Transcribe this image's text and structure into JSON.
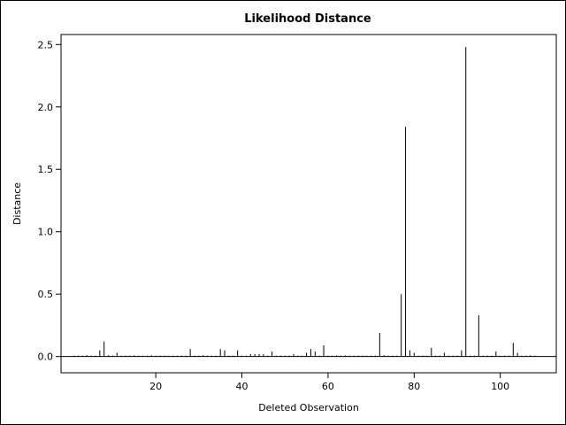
{
  "chart_data": {
    "type": "needle",
    "title": "Likelihood Distance",
    "xlabel": "Deleted Observation",
    "ylabel": "Distance",
    "xlim": [
      -2,
      113
    ],
    "ylim": [
      -0.13,
      2.58
    ],
    "x_ticks": [
      20,
      40,
      60,
      80,
      100
    ],
    "y_ticks": [
      0.0,
      0.5,
      1.0,
      1.5,
      2.0,
      2.5
    ],
    "y_tick_labels": [
      "0.0",
      "0.5",
      "1.0",
      "1.5",
      "2.0",
      "2.5"
    ],
    "baseline": 0,
    "points": [
      {
        "x": 1,
        "y": 0.0
      },
      {
        "x": 2,
        "y": 0.0
      },
      {
        "x": 3,
        "y": 0.0
      },
      {
        "x": 4,
        "y": 0.01
      },
      {
        "x": 5,
        "y": 0.0
      },
      {
        "x": 6,
        "y": 0.0
      },
      {
        "x": 7,
        "y": 0.05
      },
      {
        "x": 8,
        "y": 0.12
      },
      {
        "x": 9,
        "y": 0.01
      },
      {
        "x": 10,
        "y": 0.0
      },
      {
        "x": 11,
        "y": 0.03
      },
      {
        "x": 12,
        "y": 0.0
      },
      {
        "x": 13,
        "y": 0.0
      },
      {
        "x": 14,
        "y": 0.0
      },
      {
        "x": 15,
        "y": 0.01
      },
      {
        "x": 16,
        "y": 0.0
      },
      {
        "x": 17,
        "y": 0.0
      },
      {
        "x": 18,
        "y": 0.0
      },
      {
        "x": 19,
        "y": 0.01
      },
      {
        "x": 20,
        "y": 0.0
      },
      {
        "x": 21,
        "y": 0.0
      },
      {
        "x": 22,
        "y": 0.0
      },
      {
        "x": 23,
        "y": 0.0
      },
      {
        "x": 24,
        "y": 0.0
      },
      {
        "x": 25,
        "y": 0.0
      },
      {
        "x": 26,
        "y": 0.0
      },
      {
        "x": 27,
        "y": 0.0
      },
      {
        "x": 28,
        "y": 0.06
      },
      {
        "x": 29,
        "y": 0.0
      },
      {
        "x": 30,
        "y": 0.0
      },
      {
        "x": 31,
        "y": 0.01
      },
      {
        "x": 32,
        "y": 0.0
      },
      {
        "x": 33,
        "y": 0.0
      },
      {
        "x": 34,
        "y": 0.0
      },
      {
        "x": 35,
        "y": 0.06
      },
      {
        "x": 36,
        "y": 0.05
      },
      {
        "x": 37,
        "y": 0.0
      },
      {
        "x": 38,
        "y": 0.0
      },
      {
        "x": 39,
        "y": 0.05
      },
      {
        "x": 40,
        "y": 0.0
      },
      {
        "x": 41,
        "y": 0.0
      },
      {
        "x": 42,
        "y": 0.02
      },
      {
        "x": 43,
        "y": 0.02
      },
      {
        "x": 44,
        "y": 0.02
      },
      {
        "x": 45,
        "y": 0.02
      },
      {
        "x": 46,
        "y": 0.0
      },
      {
        "x": 47,
        "y": 0.04
      },
      {
        "x": 48,
        "y": 0.0
      },
      {
        "x": 49,
        "y": 0.0
      },
      {
        "x": 50,
        "y": 0.0
      },
      {
        "x": 51,
        "y": 0.0
      },
      {
        "x": 52,
        "y": 0.02
      },
      {
        "x": 53,
        "y": 0.0
      },
      {
        "x": 54,
        "y": 0.0
      },
      {
        "x": 55,
        "y": 0.03
      },
      {
        "x": 56,
        "y": 0.06
      },
      {
        "x": 57,
        "y": 0.04
      },
      {
        "x": 58,
        "y": 0.0
      },
      {
        "x": 59,
        "y": 0.09
      },
      {
        "x": 60,
        "y": 0.0
      },
      {
        "x": 61,
        "y": 0.0
      },
      {
        "x": 62,
        "y": 0.01
      },
      {
        "x": 63,
        "y": 0.0
      },
      {
        "x": 64,
        "y": 0.01
      },
      {
        "x": 65,
        "y": 0.0
      },
      {
        "x": 66,
        "y": 0.0
      },
      {
        "x": 67,
        "y": 0.0
      },
      {
        "x": 68,
        "y": 0.0
      },
      {
        "x": 69,
        "y": 0.0
      },
      {
        "x": 70,
        "y": 0.0
      },
      {
        "x": 71,
        "y": 0.0
      },
      {
        "x": 72,
        "y": 0.19
      },
      {
        "x": 73,
        "y": 0.01
      },
      {
        "x": 74,
        "y": 0.0
      },
      {
        "x": 75,
        "y": 0.0
      },
      {
        "x": 76,
        "y": 0.0
      },
      {
        "x": 77,
        "y": 0.5
      },
      {
        "x": 78,
        "y": 1.84
      },
      {
        "x": 79,
        "y": 0.05
      },
      {
        "x": 80,
        "y": 0.03
      },
      {
        "x": 81,
        "y": 0.0
      },
      {
        "x": 82,
        "y": 0.0
      },
      {
        "x": 83,
        "y": 0.0
      },
      {
        "x": 84,
        "y": 0.07
      },
      {
        "x": 85,
        "y": 0.0
      },
      {
        "x": 86,
        "y": 0.0
      },
      {
        "x": 87,
        "y": 0.03
      },
      {
        "x": 88,
        "y": 0.0
      },
      {
        "x": 89,
        "y": 0.0
      },
      {
        "x": 90,
        "y": 0.0
      },
      {
        "x": 91,
        "y": 0.05
      },
      {
        "x": 92,
        "y": 2.48
      },
      {
        "x": 93,
        "y": 0.0
      },
      {
        "x": 94,
        "y": 0.0
      },
      {
        "x": 95,
        "y": 0.33
      },
      {
        "x": 96,
        "y": 0.0
      },
      {
        "x": 97,
        "y": 0.0
      },
      {
        "x": 98,
        "y": 0.0
      },
      {
        "x": 99,
        "y": 0.04
      },
      {
        "x": 100,
        "y": 0.0
      },
      {
        "x": 101,
        "y": 0.0
      },
      {
        "x": 102,
        "y": 0.0
      },
      {
        "x": 103,
        "y": 0.11
      },
      {
        "x": 104,
        "y": 0.03
      },
      {
        "x": 105,
        "y": 0.0
      },
      {
        "x": 106,
        "y": 0.0
      },
      {
        "x": 107,
        "y": 0.01
      },
      {
        "x": 108,
        "y": 0.0
      }
    ],
    "grid": false,
    "colors": {
      "needle": "#000000",
      "axis": "#000000",
      "background": "#ffffff"
    }
  }
}
